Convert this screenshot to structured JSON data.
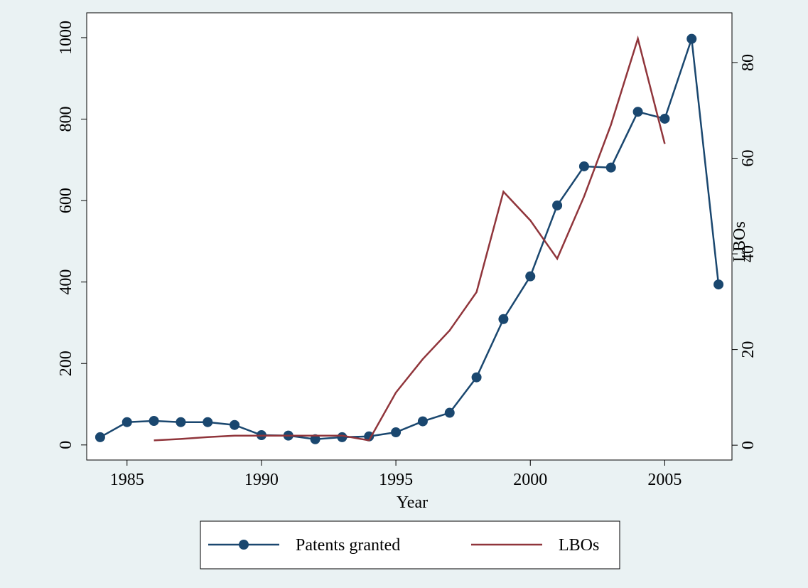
{
  "chart_data": {
    "type": "line",
    "x": [
      1984,
      1985,
      1986,
      1987,
      1988,
      1989,
      1990,
      1991,
      1992,
      1993,
      1994,
      1995,
      1996,
      1997,
      1998,
      1999,
      2000,
      2001,
      2002,
      2003,
      2004,
      2005,
      2006,
      2007
    ],
    "xlabel": "Year",
    "y2label": "LBOs",
    "series": [
      {
        "name": "Patents granted",
        "color": "#1a476f",
        "marker": "circle",
        "values": [
          19,
          56,
          59,
          56,
          56,
          49,
          24,
          23,
          14,
          19,
          21,
          31,
          58,
          79,
          166,
          309,
          414,
          588,
          684,
          681,
          818,
          801,
          997,
          394
        ]
      },
      {
        "name": "LBOs",
        "color": "#90353b",
        "axis": "y2",
        "values": [
          null,
          null,
          1,
          1.3,
          1.7,
          2,
          2,
          2,
          2,
          2,
          1,
          11,
          18,
          24,
          32,
          53,
          47,
          39,
          52,
          67,
          85,
          63,
          null,
          null
        ]
      }
    ],
    "xlim": [
      1983.5,
      2007.5
    ],
    "xticks": [
      1985,
      1990,
      1995,
      2000,
      2005
    ],
    "ylim": [
      -37,
      1061
    ],
    "yticks": [
      0,
      200,
      400,
      600,
      800,
      1000
    ],
    "y2lim": [
      -3.1,
      90.4
    ],
    "y2ticks": [
      0,
      20,
      40,
      60,
      80
    ],
    "grid": false,
    "legend": "bottom"
  }
}
